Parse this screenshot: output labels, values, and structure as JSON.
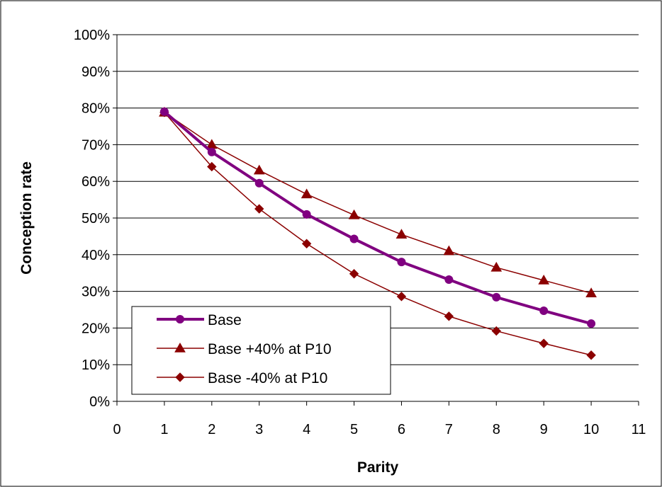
{
  "chart_data": {
    "type": "line",
    "title": "",
    "xlabel": "Parity",
    "ylabel": "Conception rate",
    "xlim": [
      0,
      11
    ],
    "ylim": [
      0,
      100
    ],
    "x_ticks": [
      "0",
      "1",
      "2",
      "3",
      "4",
      "5",
      "6",
      "7",
      "8",
      "9",
      "10",
      "11"
    ],
    "y_ticks": [
      "0%",
      "10%",
      "20%",
      "30%",
      "40%",
      "50%",
      "60%",
      "70%",
      "80%",
      "90%",
      "100%"
    ],
    "grid": "horizontal",
    "legend_position": "bottom-left",
    "x": [
      1,
      2,
      3,
      4,
      5,
      6,
      7,
      8,
      9,
      10
    ],
    "series": [
      {
        "name": "Base",
        "color": "#800080",
        "marker": "circle",
        "line_width": "thick",
        "values": [
          79,
          68,
          59.5,
          51,
          44.3,
          38,
          33.2,
          28.4,
          24.7,
          21.2
        ]
      },
      {
        "name": "Base +40% at P10",
        "color": "#8b0000",
        "marker": "triangle",
        "line_width": "thin",
        "values": [
          78.8,
          70,
          63,
          56.5,
          50.8,
          45.5,
          41,
          36.5,
          33,
          29.5
        ]
      },
      {
        "name": "Base -40% at P10",
        "color": "#8b0000",
        "marker": "diamond",
        "line_width": "thin",
        "values": [
          78.8,
          64,
          52.5,
          43,
          34.8,
          28.6,
          23.2,
          19.2,
          15.8,
          12.6
        ]
      }
    ]
  }
}
